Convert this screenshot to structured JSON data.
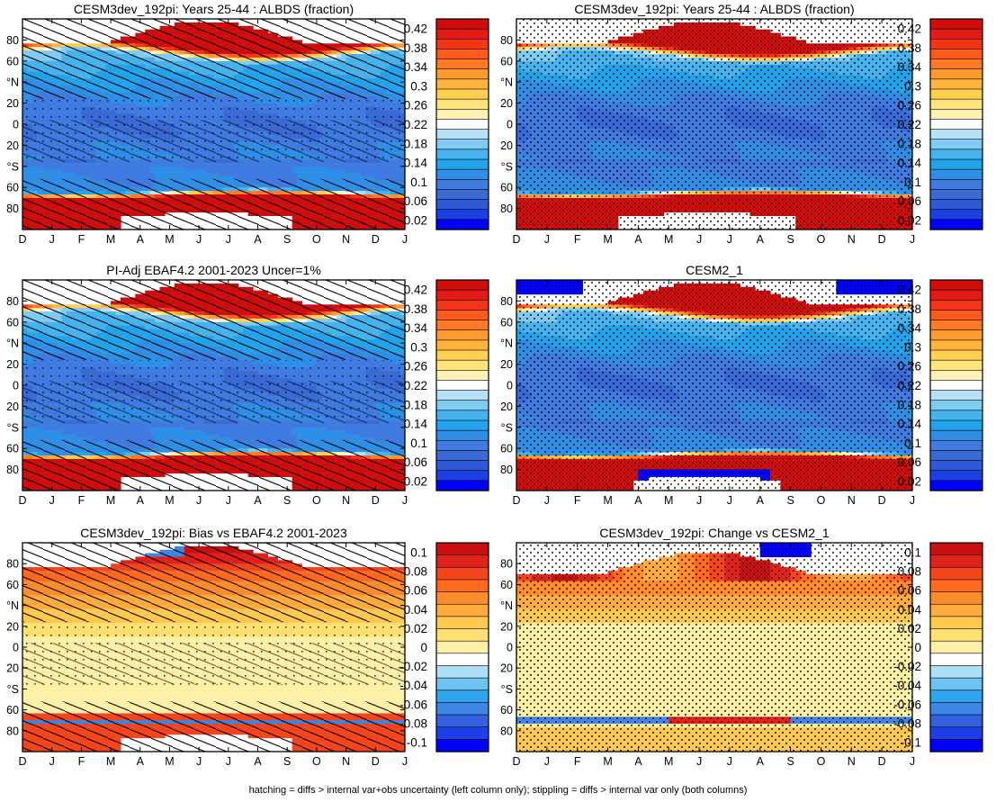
{
  "caption": "hatching = diffs > internal var+obs uncertainty (left column only); stippling = diffs > internal var only (both columns)",
  "colors": {
    "lead": [
      "#0000ff",
      "#1a40e6",
      "#2e5ad8",
      "#3a6ad6",
      "#3f7be0",
      "#2f8fe6",
      "#21a4ec",
      "#44b3ee",
      "#7fcbf2",
      "#b4e0f8",
      "#ffffff",
      "#fff2b3",
      "#ffe47a",
      "#ffcf52",
      "#ffb43d",
      "#ff9a2e",
      "#ff7a24",
      "#ff5a1a",
      "#f43416",
      "#e41a17",
      "#d00d0d"
    ],
    "diff": [
      "#0000ff",
      "#1a40e6",
      "#3460e0",
      "#3c86e6",
      "#2ea4ec",
      "#6ec4f0",
      "#b0def6",
      "#ffffff",
      "#fff0a8",
      "#ffe070",
      "#ffc84e",
      "#ffac3c",
      "#ff8c2c",
      "#ff6a1f",
      "#f4461a",
      "#e0221a",
      "#c81010"
    ]
  },
  "chart_data": [
    {
      "type": "heatmap",
      "panel": "top-left",
      "title": "CESM3dev_192pi: Years 25-44 : ALBDS (fraction)",
      "xlabel": "",
      "ylabel": "",
      "x_ticks": [
        "D",
        "J",
        "F",
        "M",
        "A",
        "M",
        "J",
        "J",
        "A",
        "S",
        "O",
        "N",
        "D",
        "J"
      ],
      "y_ticks": [
        "80",
        "60",
        "°N",
        "20",
        "0",
        "20",
        "°S",
        "60",
        "80"
      ],
      "colorbar_labels": [
        "0.42",
        "0.38",
        "0.34",
        "0.3",
        "0.26",
        "0.22",
        "0.18",
        "0.14",
        "0.1",
        "0.06",
        "0.02"
      ],
      "colorbar_values": [
        0.42,
        0.38,
        0.34,
        0.3,
        0.26,
        0.22,
        0.18,
        0.14,
        0.1,
        0.06,
        0.02
      ],
      "colorbar_range": [
        0.0,
        0.44
      ],
      "field": "lead",
      "hatch": true,
      "stipple": "sparse"
    },
    {
      "type": "heatmap",
      "panel": "top-right",
      "title": "CESM3dev_192pi: Years 25-44 : ALBDS (fraction)",
      "xlabel": "",
      "ylabel": "",
      "x_ticks": [
        "D",
        "J",
        "F",
        "M",
        "A",
        "M",
        "J",
        "J",
        "A",
        "S",
        "O",
        "N",
        "D",
        "J"
      ],
      "y_ticks": [
        "80",
        "60",
        "°N",
        "20",
        "0",
        "20",
        "°S",
        "60",
        "80"
      ],
      "colorbar_labels": [
        "0.42",
        "0.38",
        "0.34",
        "0.3",
        "0.26",
        "0.22",
        "0.18",
        "0.14",
        "0.1",
        "0.06",
        "0.02"
      ],
      "colorbar_values": [
        0.42,
        0.38,
        0.34,
        0.3,
        0.26,
        0.22,
        0.18,
        0.14,
        0.1,
        0.06,
        0.02
      ],
      "colorbar_range": [
        0.0,
        0.44
      ],
      "field": "lead",
      "hatch": false,
      "stipple": "dense"
    },
    {
      "type": "heatmap",
      "panel": "middle-left",
      "title": "PI-Adj EBAF4.2 2001-2023 Uncer=1%",
      "xlabel": "",
      "ylabel": "",
      "x_ticks": [
        "D",
        "J",
        "F",
        "M",
        "A",
        "M",
        "J",
        "J",
        "A",
        "S",
        "O",
        "N",
        "D",
        "J"
      ],
      "y_ticks": [
        "80",
        "60",
        "°N",
        "20",
        "0",
        "20",
        "°S",
        "60",
        "80"
      ],
      "colorbar_labels": [
        "0.42",
        "0.38",
        "0.34",
        "0.3",
        "0.26",
        "0.22",
        "0.18",
        "0.14",
        "0.1",
        "0.06",
        "0.02"
      ],
      "colorbar_values": [
        0.42,
        0.38,
        0.34,
        0.3,
        0.26,
        0.22,
        0.18,
        0.14,
        0.1,
        0.06,
        0.02
      ],
      "colorbar_range": [
        0.0,
        0.44
      ],
      "field": "lead",
      "hatch": true,
      "stipple": "sparse"
    },
    {
      "type": "heatmap",
      "panel": "middle-right",
      "title": "CESM2_1",
      "xlabel": "",
      "ylabel": "",
      "x_ticks": [
        "D",
        "J",
        "F",
        "M",
        "A",
        "M",
        "J",
        "J",
        "A",
        "S",
        "O",
        "N",
        "D",
        "J"
      ],
      "y_ticks": [
        "80",
        "60",
        "°N",
        "20",
        "0",
        "20",
        "°S",
        "60",
        "80"
      ],
      "colorbar_labels": [
        "0.42",
        "0.38",
        "0.34",
        "0.3",
        "0.26",
        "0.22",
        "0.18",
        "0.14",
        "0.1",
        "0.06",
        "0.02"
      ],
      "colorbar_values": [
        0.42,
        0.38,
        0.34,
        0.3,
        0.26,
        0.22,
        0.18,
        0.14,
        0.1,
        0.06,
        0.02
      ],
      "colorbar_range": [
        0.0,
        0.44
      ],
      "field": "cesm2",
      "hatch": false,
      "stipple": "dense"
    },
    {
      "type": "heatmap",
      "panel": "bottom-left",
      "title": "CESM3dev_192pi: Bias vs EBAF4.2 2001-2023",
      "xlabel": "",
      "ylabel": "",
      "x_ticks": [
        "D",
        "J",
        "F",
        "M",
        "A",
        "M",
        "J",
        "J",
        "A",
        "S",
        "O",
        "N",
        "D",
        "J"
      ],
      "y_ticks": [
        "80",
        "60",
        "°N",
        "20",
        "0",
        "20",
        "°S",
        "60",
        "80"
      ],
      "colorbar_labels": [
        "0.1",
        "0.08",
        "0.06",
        "0.04",
        "0.02",
        "0",
        "-0.02",
        "-0.04",
        "-0.06",
        "-0.08",
        "-0.1"
      ],
      "colorbar_values": [
        0.1,
        0.08,
        0.06,
        0.04,
        0.02,
        0,
        -0.02,
        -0.04,
        -0.06,
        -0.08,
        -0.1
      ],
      "colorbar_range": [
        -0.11,
        0.11
      ],
      "field": "bias",
      "hatch": true,
      "stipple": "sparse"
    },
    {
      "type": "heatmap",
      "panel": "bottom-right",
      "title": "CESM3dev_192pi: Change vs CESM2_1",
      "xlabel": "",
      "ylabel": "",
      "x_ticks": [
        "D",
        "J",
        "F",
        "M",
        "A",
        "M",
        "J",
        "J",
        "A",
        "S",
        "O",
        "N",
        "D",
        "J"
      ],
      "y_ticks": [
        "80",
        "60",
        "°N",
        "20",
        "0",
        "20",
        "°S",
        "60",
        "80"
      ],
      "colorbar_labels": [
        "0.1",
        "0.08",
        "0.06",
        "0.04",
        "0.02",
        "0",
        "-0.02",
        "-0.04",
        "-0.06",
        "-0.08",
        "-0.1"
      ],
      "colorbar_values": [
        0.1,
        0.08,
        0.06,
        0.04,
        0.02,
        0,
        -0.02,
        -0.04,
        -0.06,
        -0.08,
        -0.1
      ],
      "colorbar_range": [
        -0.11,
        0.11
      ],
      "field": "change",
      "hatch": false,
      "stipple": "dense"
    }
  ]
}
